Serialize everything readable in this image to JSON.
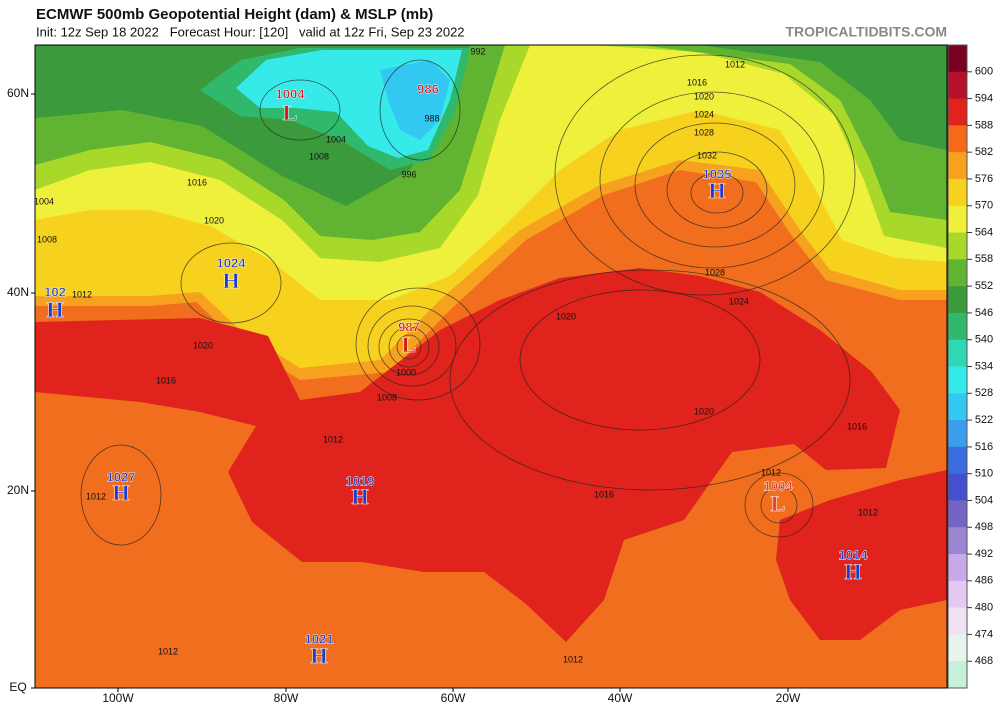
{
  "header": {
    "title": "ECMWF 500mb Geopotential Height (dam) & MSLP (mb)",
    "subtitle": "Init: 12z Sep 18 2022   Forecast Hour: [120]   valid at 12z Fri, Sep 23 2022",
    "site": "TROPICALTIDBITS.COM"
  },
  "colorbar": {
    "levels": [
      600,
      594,
      588,
      582,
      576,
      570,
      564,
      558,
      552,
      546,
      540,
      534,
      528,
      522,
      516,
      510,
      504,
      498,
      492,
      486,
      480,
      474,
      468
    ],
    "colors": [
      "#7a0022",
      "#b3122a",
      "#e0231c",
      "#f26a1a",
      "#f7a21f",
      "#f6d21e",
      "#eef03c",
      "#a8d82a",
      "#60b432",
      "#3a9a3c",
      "#30b86c",
      "#2ed8b4",
      "#36eaea",
      "#32c8f2",
      "#3a9eee",
      "#3a6ee0",
      "#4450d0",
      "#7664c2",
      "#9c86d2",
      "#c8aae8",
      "#e2caf2",
      "#f0e2f2",
      "#e6f4ec",
      "#c6f0d8"
    ]
  },
  "axes": {
    "lon_labels": [
      "100W",
      "80W",
      "60W",
      "40W",
      "20W"
    ],
    "lat_labels": [
      "60N",
      "40N",
      "20N",
      "EQ"
    ]
  },
  "pressure_centers": [
    {
      "type": "H",
      "value": "102",
      "color": "#1a3cc8"
    },
    {
      "type": "H",
      "value": "1024",
      "color": "#1a3cc8"
    },
    {
      "value": "986",
      "color": "#d01818"
    },
    {
      "type": "L",
      "value": "1004",
      "color": "#d01818"
    },
    {
      "type": "H",
      "value": "1035",
      "color": "#1a3cc8"
    },
    {
      "type": "L",
      "value": "987",
      "color": "#d01818"
    },
    {
      "type": "H",
      "value": "1027",
      "color": "#1a3cc8"
    },
    {
      "type": "H",
      "value": "1019",
      "color": "#1a3cc8"
    },
    {
      "type": "L",
      "value": "1004",
      "color": "#e04030"
    },
    {
      "type": "H",
      "value": "1014",
      "color": "#1a3cc8"
    },
    {
      "type": "H",
      "value": "1021",
      "color": "#1a3cc8"
    }
  ],
  "isobar_labels": [
    "992",
    "1012",
    "1016",
    "1020",
    "1024",
    "1028",
    "1032",
    "1028",
    "1024",
    "1020",
    "1020",
    "1016",
    "1016",
    "1012",
    "1012",
    "1012",
    "1012",
    "1012",
    "1008",
    "1000",
    "1004",
    "996",
    "988",
    "1008",
    "1016",
    "1020",
    "1016",
    "1020",
    "1012",
    "1004",
    "1008",
    "1012"
  ]
}
